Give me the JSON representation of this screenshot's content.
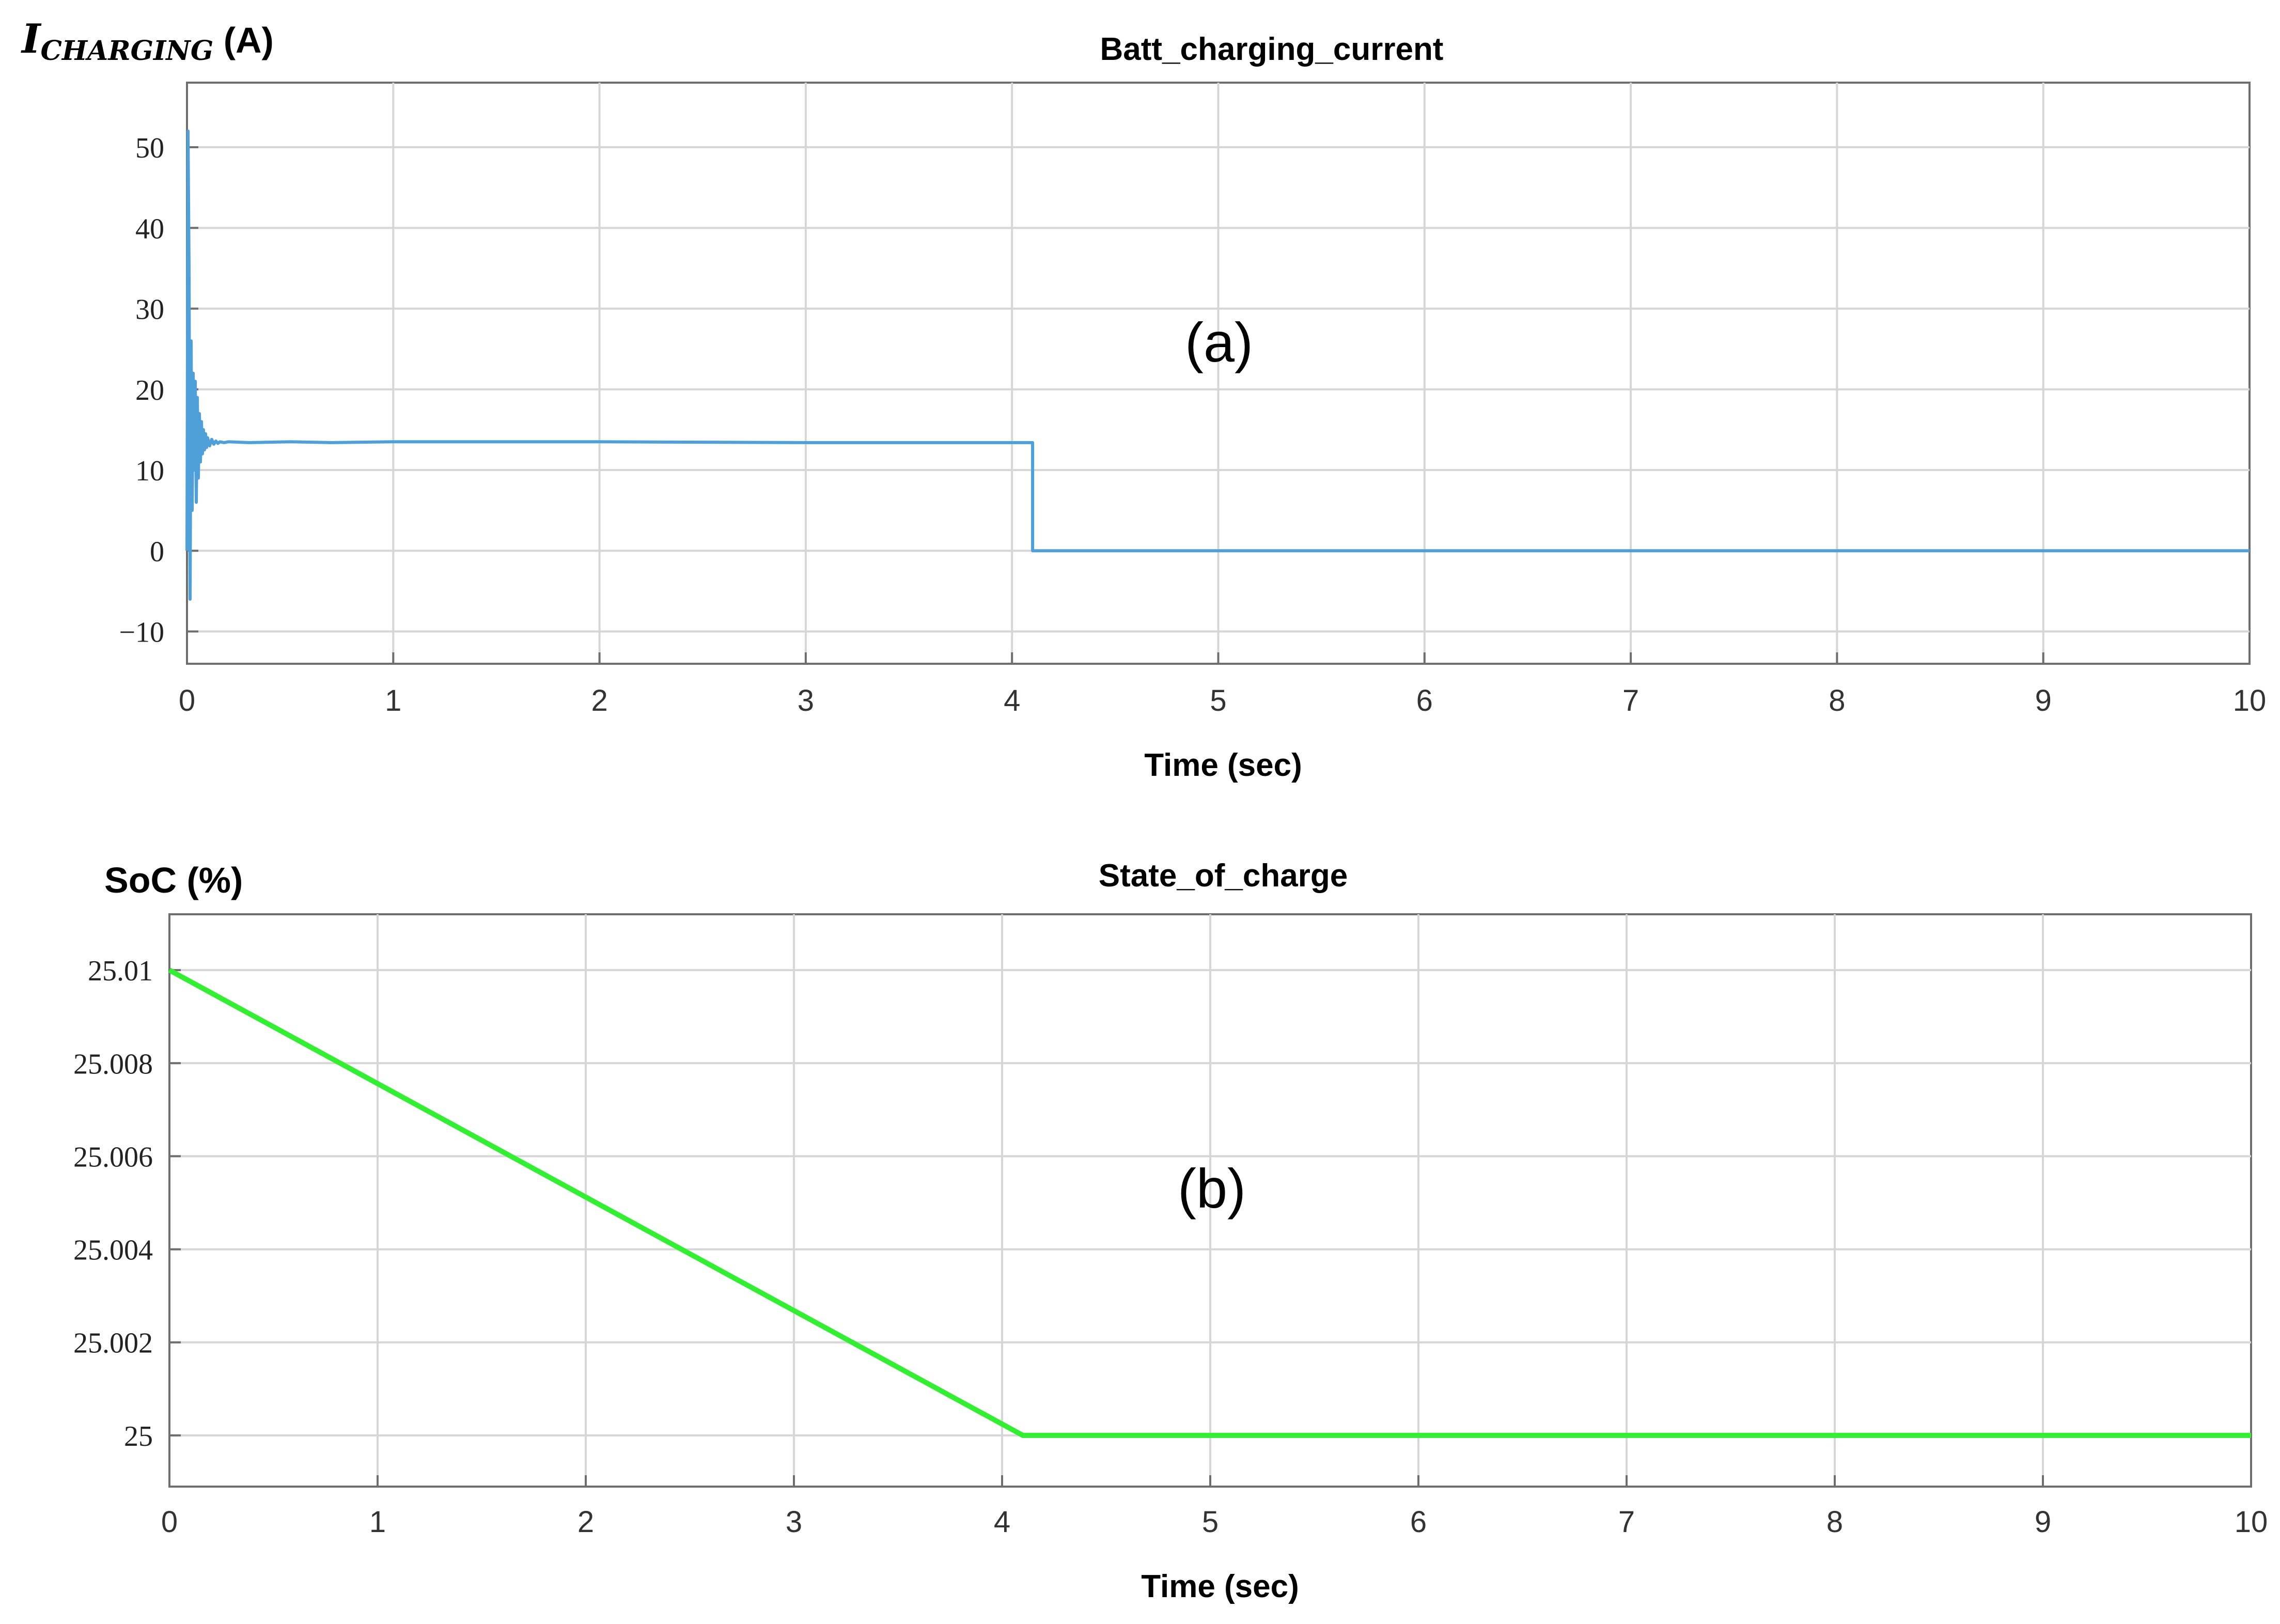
{
  "chart_data": [
    {
      "type": "line",
      "title": "Batt_charging_current",
      "ylabel_main": "I",
      "ylabel_sub": "CHARGING",
      "ylabel_unit": " (A)",
      "xlabel": "Time (sec)",
      "annotation": "(a)",
      "xlim": [
        0,
        10
      ],
      "ylim": [
        -14,
        58
      ],
      "xticks": [
        0,
        1,
        2,
        3,
        4,
        5,
        6,
        7,
        8,
        9,
        10
      ],
      "xtick_labels": [
        "0",
        "1",
        "2",
        "3",
        "4",
        "5",
        "6",
        "7",
        "8",
        "9",
        "10"
      ],
      "yticks": [
        -10,
        0,
        10,
        20,
        30,
        40,
        50
      ],
      "ytick_labels": [
        "−10",
        "0",
        "10",
        "20",
        "30",
        "40",
        "50"
      ],
      "grid": true,
      "series": [
        {
          "color": "#4f9fd8",
          "x": [
            0,
            0.005,
            0.01,
            0.015,
            0.02,
            0.025,
            0.03,
            0.035,
            0.04,
            0.045,
            0.05,
            0.055,
            0.06,
            0.065,
            0.07,
            0.075,
            0.08,
            0.085,
            0.09,
            0.095,
            0.1,
            0.11,
            0.12,
            0.13,
            0.14,
            0.15,
            0.16,
            0.18,
            0.2,
            0.3,
            0.5,
            0.7,
            1.0,
            2.0,
            3.0,
            4.0,
            4.1,
            4.1,
            5,
            6,
            7,
            8,
            9,
            10
          ],
          "y": [
            0,
            52,
            35,
            -6,
            26,
            5,
            22,
            10,
            21,
            6,
            19,
            9,
            17,
            11,
            16,
            12,
            15,
            12.5,
            14.5,
            12.8,
            14,
            13,
            13.8,
            13.2,
            13.6,
            13.3,
            13.5,
            13.4,
            13.5,
            13.4,
            13.5,
            13.4,
            13.5,
            13.5,
            13.4,
            13.4,
            13.4,
            0,
            0,
            0,
            0,
            0,
            0,
            0
          ]
        }
      ]
    },
    {
      "type": "line",
      "title": "State_of_charge",
      "ylabel_main": "SoC (%)",
      "xlabel": "Time (sec)",
      "annotation": "(b)",
      "xlim": [
        0,
        10
      ],
      "ylim": [
        24.9989,
        25.0112
      ],
      "xticks": [
        0,
        1,
        2,
        3,
        4,
        5,
        6,
        7,
        8,
        9,
        10
      ],
      "xtick_labels": [
        "0",
        "1",
        "2",
        "3",
        "4",
        "5",
        "6",
        "7",
        "8",
        "9",
        "10"
      ],
      "yticks": [
        25,
        25.002,
        25.004,
        25.006,
        25.008,
        25.01
      ],
      "ytick_labels": [
        "25",
        "25.002",
        "25.004",
        "25.006",
        "25.008",
        "25.01"
      ],
      "grid": true,
      "series": [
        {
          "color": "#33ee33",
          "x": [
            0,
            4.1,
            10
          ],
          "y": [
            25.01,
            25.0,
            25.0
          ]
        }
      ]
    }
  ]
}
